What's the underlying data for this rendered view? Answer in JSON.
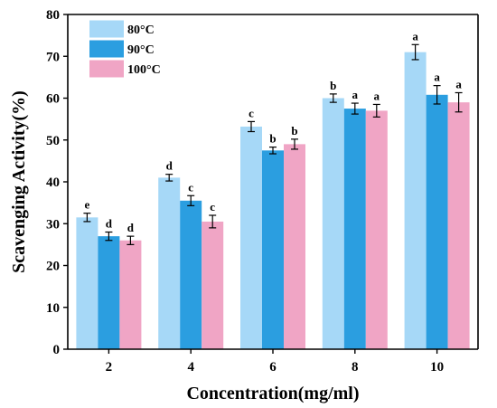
{
  "chart_data": {
    "type": "bar",
    "title": "",
    "xlabel": "Concentration(mg/ml)",
    "ylabel": "Scavenging Activity(%)",
    "categories": [
      "2",
      "4",
      "6",
      "8",
      "10"
    ],
    "ylim": [
      0,
      80
    ],
    "yticks": [
      "0",
      "10",
      "20",
      "30",
      "40",
      "50",
      "60",
      "70",
      "80"
    ],
    "legend_position": "top-left",
    "grid": false,
    "series": [
      {
        "name": "80°C",
        "color": "#a6d8f7",
        "values": [
          31.5,
          41.0,
          53.2,
          60.0,
          71.0
        ],
        "errors": [
          1.0,
          0.8,
          1.2,
          1.0,
          1.8
        ],
        "labels": [
          "e",
          "d",
          "c",
          "b",
          "a"
        ]
      },
      {
        "name": "90°C",
        "color": "#2b9ee0",
        "values": [
          27.0,
          35.5,
          47.5,
          57.5,
          60.8
        ],
        "errors": [
          1.0,
          1.2,
          0.8,
          1.3,
          2.2
        ],
        "labels": [
          "d",
          "c",
          "b",
          "a",
          "a"
        ]
      },
      {
        "name": "100°C",
        "color": "#f0a5c5",
        "values": [
          26.0,
          30.5,
          49.0,
          57.0,
          59.0
        ],
        "errors": [
          1.0,
          1.5,
          1.2,
          1.5,
          2.3
        ],
        "labels": [
          "d",
          "c",
          "b",
          "a",
          "a"
        ]
      }
    ]
  }
}
